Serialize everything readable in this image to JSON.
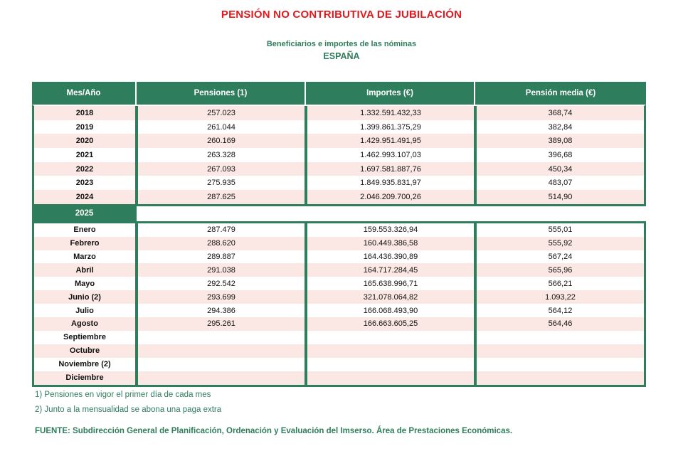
{
  "page": {
    "title": "PENSIÓN NO CONTRIBUTIVA DE JUBILACIÓN",
    "subtitle": "Beneficiarios e importes de las nóminas",
    "region": "ESPAÑA"
  },
  "colors": {
    "accent_green": "#2E7D5C",
    "row_pink": "#FBE7E3",
    "title_red": "#E2191F"
  },
  "table": {
    "headers": [
      "Mes/Año",
      "Pensiones (1)",
      "Importes (€)",
      "Pensión media (€)"
    ],
    "year_rows": [
      {
        "label": "2018",
        "pensiones": "257.023",
        "importes": "1.332.591.432,33",
        "media": "368,74"
      },
      {
        "label": "2019",
        "pensiones": "261.044",
        "importes": "1.399.861.375,29",
        "media": "382,84"
      },
      {
        "label": "2020",
        "pensiones": "260.169",
        "importes": "1.429.951.491,95",
        "media": "389,08"
      },
      {
        "label": "2021",
        "pensiones": "263.328",
        "importes": "1.462.993.107,03",
        "media": "396,68"
      },
      {
        "label": "2022",
        "pensiones": "267.093",
        "importes": "1.697.581.887,76",
        "media": "450,34"
      },
      {
        "label": "2023",
        "pensiones": "275.935",
        "importes": "1.849.935.831,97",
        "media": "483,07"
      },
      {
        "label": "2024",
        "pensiones": "287.625",
        "importes": "2.046.209.700,26",
        "media": "514,90"
      }
    ],
    "section_2025_label": "2025",
    "month_rows": [
      {
        "label": "Enero",
        "pensiones": "287.479",
        "importes": "159.553.326,94",
        "media": "555,01"
      },
      {
        "label": "Febrero",
        "pensiones": "288.620",
        "importes": "160.449.386,58",
        "media": "555,92"
      },
      {
        "label": "Marzo",
        "pensiones": "289.887",
        "importes": "164.436.390,89",
        "media": "567,24"
      },
      {
        "label": "Abril",
        "pensiones": "291.038",
        "importes": "164.717.284,45",
        "media": "565,96"
      },
      {
        "label": "Mayo",
        "pensiones": "292.542",
        "importes": "165.638.996,71",
        "media": "566,21"
      },
      {
        "label": "Junio (2)",
        "pensiones": "293.699",
        "importes": "321.078.064,82",
        "media": "1.093,22"
      },
      {
        "label": "Julio",
        "pensiones": "294.386",
        "importes": "166.068.493,90",
        "media": "564,12"
      },
      {
        "label": "Agosto",
        "pensiones": "295.261",
        "importes": "166.663.605,25",
        "media": "564,46"
      },
      {
        "label": "Septiembre",
        "pensiones": "",
        "importes": "",
        "media": ""
      },
      {
        "label": "Octubre",
        "pensiones": "",
        "importes": "",
        "media": ""
      },
      {
        "label": "Noviembre (2)",
        "pensiones": "",
        "importes": "",
        "media": ""
      },
      {
        "label": "Diciembre",
        "pensiones": "",
        "importes": "",
        "media": ""
      }
    ]
  },
  "footnotes": [
    "1) Pensiones en vigor el primer día de cada mes",
    "2) Junto a la mensualidad se abona una paga extra"
  ],
  "source": "FUENTE: Subdirección General de Planificación, Ordenación y Evaluación del Imserso. Área de Prestaciones Económicas."
}
